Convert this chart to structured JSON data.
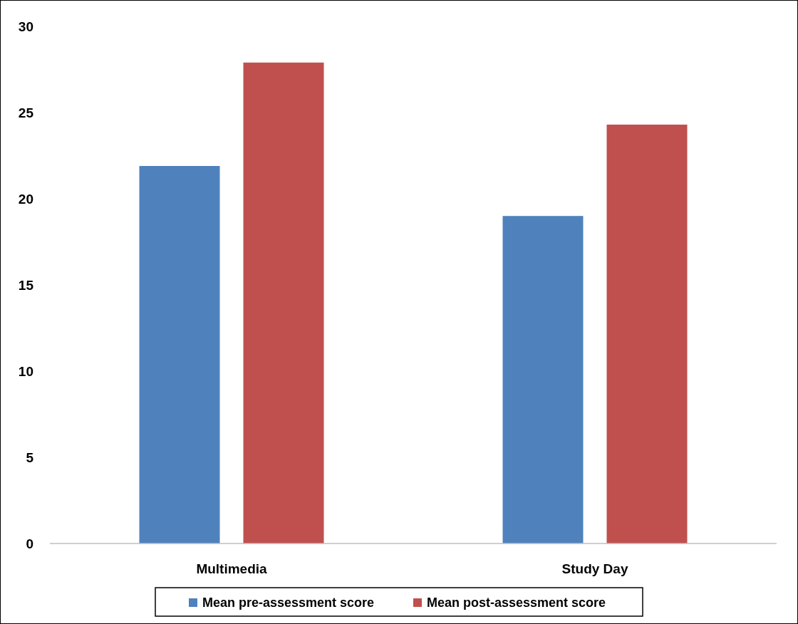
{
  "chart_data": {
    "type": "bar",
    "categories": [
      "Multimedia",
      "Study Day"
    ],
    "series": [
      {
        "name": "Mean pre-assessment score",
        "color": "#4f81bd",
        "values": [
          21.9,
          19.0
        ]
      },
      {
        "name": "Mean post-assessment score",
        "color": "#c0504d",
        "values": [
          27.9,
          24.3
        ]
      }
    ],
    "ylim": [
      0,
      30
    ],
    "yticks": [
      0,
      5,
      10,
      15,
      20,
      25,
      30
    ],
    "grid": false,
    "legend": "bottom"
  }
}
